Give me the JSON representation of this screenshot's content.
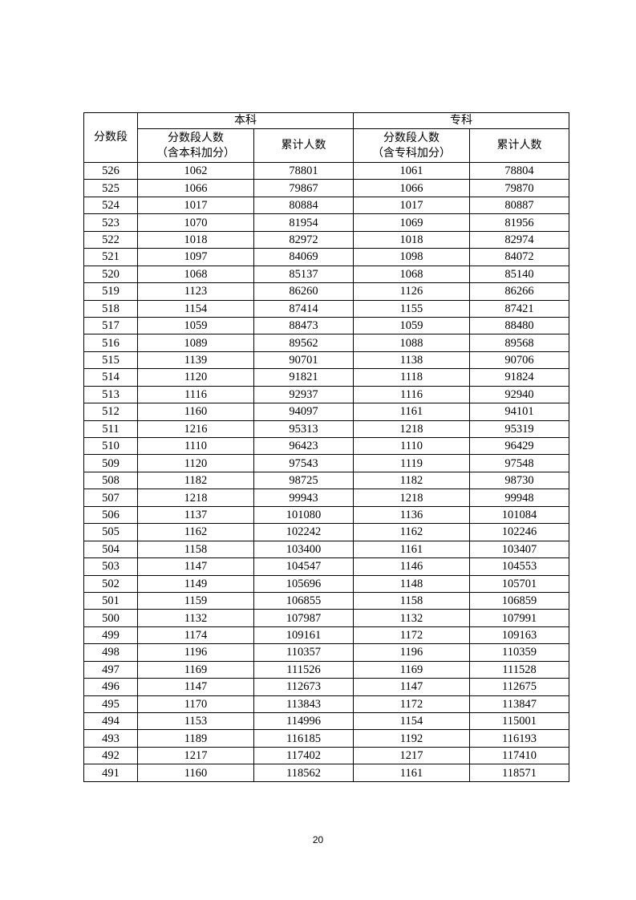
{
  "table": {
    "header": {
      "score_band": "分数段",
      "undergrad": "本科",
      "vocational": "专科",
      "undergrad_count": "分数段人数",
      "undergrad_count_note": "（含本科加分）",
      "undergrad_cumulative": "累计人数",
      "vocational_count": "分数段人数",
      "vocational_count_note": "（含专科加分）",
      "vocational_cumulative": "累计人数"
    },
    "rows": [
      [
        "526",
        "1062",
        "78801",
        "1061",
        "78804"
      ],
      [
        "525",
        "1066",
        "79867",
        "1066",
        "79870"
      ],
      [
        "524",
        "1017",
        "80884",
        "1017",
        "80887"
      ],
      [
        "523",
        "1070",
        "81954",
        "1069",
        "81956"
      ],
      [
        "522",
        "1018",
        "82972",
        "1018",
        "82974"
      ],
      [
        "521",
        "1097",
        "84069",
        "1098",
        "84072"
      ],
      [
        "520",
        "1068",
        "85137",
        "1068",
        "85140"
      ],
      [
        "519",
        "1123",
        "86260",
        "1126",
        "86266"
      ],
      [
        "518",
        "1154",
        "87414",
        "1155",
        "87421"
      ],
      [
        "517",
        "1059",
        "88473",
        "1059",
        "88480"
      ],
      [
        "516",
        "1089",
        "89562",
        "1088",
        "89568"
      ],
      [
        "515",
        "1139",
        "90701",
        "1138",
        "90706"
      ],
      [
        "514",
        "1120",
        "91821",
        "1118",
        "91824"
      ],
      [
        "513",
        "1116",
        "92937",
        "1116",
        "92940"
      ],
      [
        "512",
        "1160",
        "94097",
        "1161",
        "94101"
      ],
      [
        "511",
        "1216",
        "95313",
        "1218",
        "95319"
      ],
      [
        "510",
        "1110",
        "96423",
        "1110",
        "96429"
      ],
      [
        "509",
        "1120",
        "97543",
        "1119",
        "97548"
      ],
      [
        "508",
        "1182",
        "98725",
        "1182",
        "98730"
      ],
      [
        "507",
        "1218",
        "99943",
        "1218",
        "99948"
      ],
      [
        "506",
        "1137",
        "101080",
        "1136",
        "101084"
      ],
      [
        "505",
        "1162",
        "102242",
        "1162",
        "102246"
      ],
      [
        "504",
        "1158",
        "103400",
        "1161",
        "103407"
      ],
      [
        "503",
        "1147",
        "104547",
        "1146",
        "104553"
      ],
      [
        "502",
        "1149",
        "105696",
        "1148",
        "105701"
      ],
      [
        "501",
        "1159",
        "106855",
        "1158",
        "106859"
      ],
      [
        "500",
        "1132",
        "107987",
        "1132",
        "107991"
      ],
      [
        "499",
        "1174",
        "109161",
        "1172",
        "109163"
      ],
      [
        "498",
        "1196",
        "110357",
        "1196",
        "110359"
      ],
      [
        "497",
        "1169",
        "111526",
        "1169",
        "111528"
      ],
      [
        "496",
        "1147",
        "112673",
        "1147",
        "112675"
      ],
      [
        "495",
        "1170",
        "113843",
        "1172",
        "113847"
      ],
      [
        "494",
        "1153",
        "114996",
        "1154",
        "115001"
      ],
      [
        "493",
        "1189",
        "116185",
        "1192",
        "116193"
      ],
      [
        "492",
        "1217",
        "117402",
        "1217",
        "117410"
      ],
      [
        "491",
        "1160",
        "118562",
        "1161",
        "118571"
      ]
    ]
  },
  "page_number": "20"
}
